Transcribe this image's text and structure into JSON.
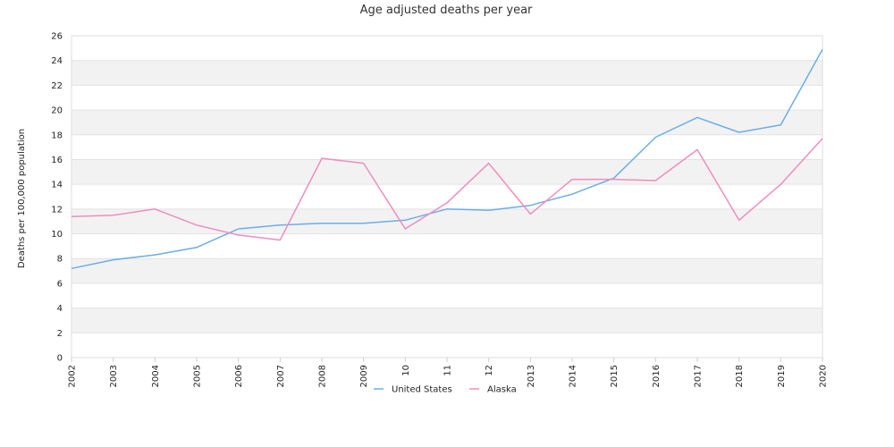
{
  "chart_data": {
    "type": "line",
    "title": "Age adjusted deaths per year",
    "xlabel": "",
    "ylabel": "Deaths per 100,000 population",
    "categories": [
      "2002",
      "2003",
      "2004",
      "2005",
      "2006",
      "2007",
      "2008",
      "2009",
      "10",
      "11",
      "12",
      "2013",
      "2014",
      "2015",
      "2016",
      "2017",
      "2018",
      "2019",
      "2020"
    ],
    "ylim": [
      0,
      26
    ],
    "yticks": [
      0,
      2,
      4,
      6,
      8,
      10,
      12,
      14,
      16,
      18,
      20,
      22,
      24,
      26
    ],
    "grid": "alternating horizontal bands",
    "legend": "bottom-center",
    "series": [
      {
        "name": "United States",
        "color": "#6aaee8",
        "values": [
          7.2,
          7.9,
          8.3,
          8.9,
          10.4,
          10.7,
          10.85,
          10.85,
          11.1,
          12.0,
          11.9,
          12.3,
          13.2,
          14.5,
          17.8,
          19.4,
          18.2,
          18.8,
          24.9
        ]
      },
      {
        "name": "Alaska",
        "color": "#f08cbf",
        "values": [
          11.4,
          11.5,
          12.0,
          10.7,
          9.9,
          9.5,
          16.1,
          15.7,
          10.4,
          12.5,
          15.7,
          11.6,
          14.4,
          14.4,
          14.3,
          16.8,
          11.1,
          14.0,
          17.7
        ]
      }
    ]
  }
}
